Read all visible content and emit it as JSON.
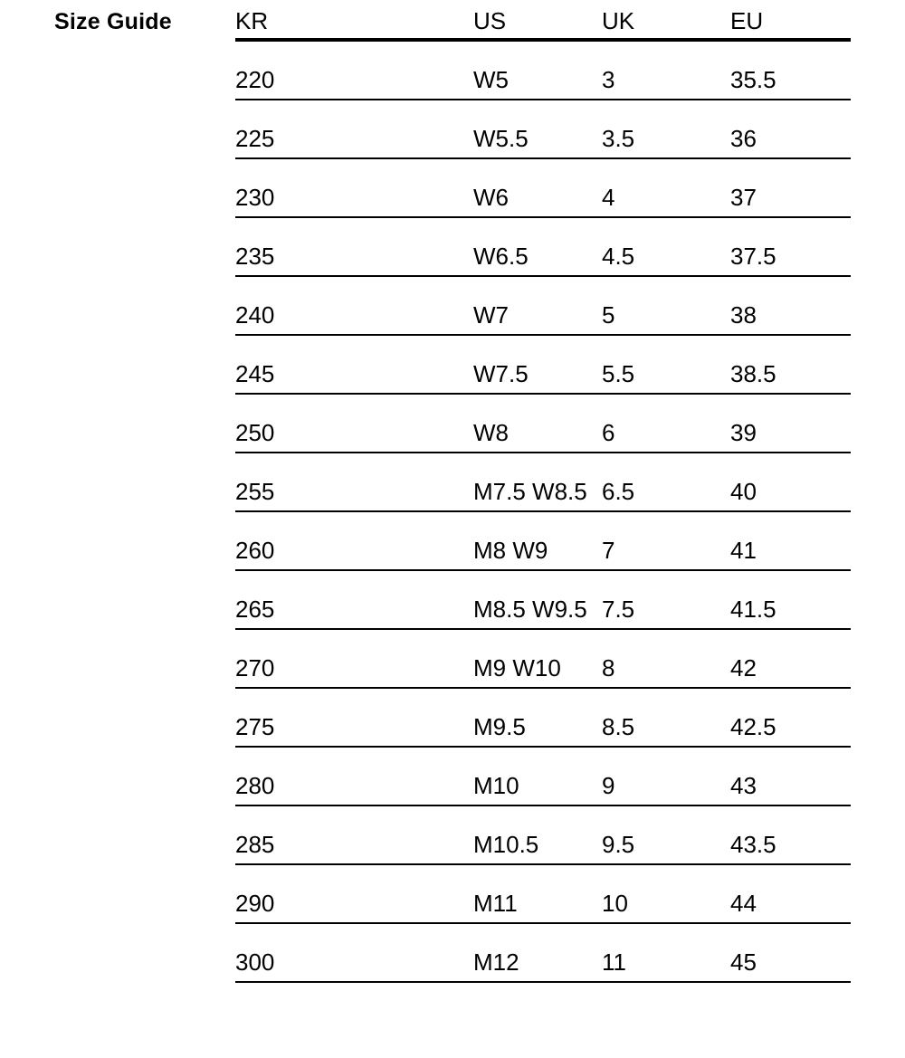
{
  "page": {
    "title": "Size Guide"
  },
  "size_table": {
    "columns": [
      "KR",
      "US",
      "UK",
      "EU"
    ],
    "rows": [
      [
        "220",
        "W5",
        "3",
        "35.5"
      ],
      [
        "225",
        "W5.5",
        "3.5",
        "36"
      ],
      [
        "230",
        "W6",
        "4",
        "37"
      ],
      [
        "235",
        "W6.5",
        "4.5",
        "37.5"
      ],
      [
        "240",
        "W7",
        "5",
        "38"
      ],
      [
        "245",
        "W7.5",
        "5.5",
        "38.5"
      ],
      [
        "250",
        "W8",
        "6",
        "39"
      ],
      [
        "255",
        "M7.5 W8.5",
        "6.5",
        "40"
      ],
      [
        "260",
        "M8 W9",
        "7",
        "41"
      ],
      [
        "265",
        "M8.5 W9.5",
        "7.5",
        "41.5"
      ],
      [
        "270",
        "M9 W10",
        "8",
        "42"
      ],
      [
        "275",
        "M9.5",
        "8.5",
        "42.5"
      ],
      [
        "280",
        "M10",
        "9",
        "43"
      ],
      [
        "285",
        "M10.5",
        "9.5",
        "43.5"
      ],
      [
        "290",
        "M11",
        "10",
        "44"
      ],
      [
        "300",
        "M12",
        "11",
        "45"
      ]
    ],
    "colors": {
      "text": "#000000",
      "background": "#ffffff",
      "rule": "#000000"
    }
  }
}
